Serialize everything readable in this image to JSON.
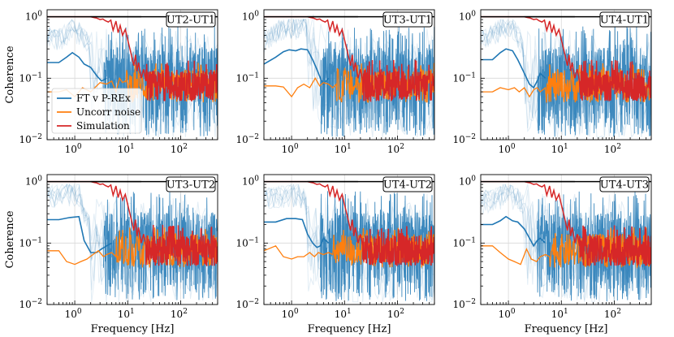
{
  "chart_data": {
    "type": "line",
    "scale": {
      "x": "log",
      "y": "log"
    },
    "xlim": [
      0.3,
      500
    ],
    "ylim": [
      0.01,
      1.3
    ],
    "xticks": [
      {
        "v": 1,
        "label": "10",
        "exp": "0"
      },
      {
        "v": 10,
        "label": "10",
        "exp": "1"
      },
      {
        "v": 100,
        "label": "10",
        "exp": "2"
      }
    ],
    "yticks": [
      {
        "v": 0.01,
        "label": "10",
        "exp": "−2"
      },
      {
        "v": 0.1,
        "label": "10",
        "exp": "−1"
      },
      {
        "v": 1,
        "label": "10",
        "exp": "0"
      }
    ],
    "xlabel": "Frequency [Hz]",
    "ylabel": "Coherence",
    "colors": {
      "ft": "#1f77b4",
      "uncorr": "#ff7f0e",
      "sim": "#d62728",
      "ref": "#000000"
    },
    "legend": {
      "placement": "lower-left of top-left panel",
      "entries": [
        {
          "label": "FT v P-REx",
          "series": "ft"
        },
        {
          "label": "Uncorr noise",
          "series": "uncorr"
        },
        {
          "label": "Simulation",
          "series": "sim"
        }
      ]
    },
    "sim_curve": {
      "x": [
        0.3,
        2,
        2.3,
        2.6,
        3,
        3.4,
        3.8,
        4.3,
        4.8,
        5.3,
        6,
        6.6,
        7.2,
        8,
        9,
        10,
        11,
        12,
        13,
        14,
        15,
        16,
        18,
        20,
        22
      ],
      "y": [
        1.0,
        1.0,
        0.97,
        0.95,
        0.9,
        0.92,
        0.86,
        0.82,
        0.88,
        0.6,
        0.85,
        0.55,
        0.72,
        0.5,
        0.62,
        0.42,
        0.3,
        0.22,
        0.16,
        0.24,
        0.13,
        0.18,
        0.1,
        0.14,
        0.09
      ]
    },
    "panels": [
      {
        "title": "UT2-UT1",
        "ft_mean": {
          "x": [
            0.3,
            0.5,
            0.7,
            0.9,
            1.2,
            1.5,
            2,
            2.6,
            3.2,
            4
          ],
          "y": [
            0.18,
            0.18,
            0.22,
            0.26,
            0.22,
            0.17,
            0.15,
            0.11,
            0.09,
            0.1
          ]
        },
        "uncorr_mean": {
          "x": [
            0.3,
            0.5,
            0.7,
            1,
            1.4,
            2,
            3,
            4,
            5,
            6,
            7,
            8,
            9
          ],
          "y": [
            0.06,
            0.06,
            0.065,
            0.05,
            0.07,
            0.06,
            0.085,
            0.08,
            0.09,
            0.06,
            0.1,
            0.085,
            0.09
          ]
        }
      },
      {
        "title": "UT3-UT1",
        "ft_mean": {
          "x": [
            0.3,
            0.5,
            0.7,
            0.9,
            1.2,
            1.5,
            2,
            2.5,
            3,
            3.5,
            4,
            5
          ],
          "y": [
            0.17,
            0.22,
            0.27,
            0.29,
            0.28,
            0.3,
            0.29,
            0.2,
            0.14,
            0.1,
            0.08,
            0.1
          ]
        },
        "uncorr_mean": {
          "x": [
            0.3,
            0.5,
            0.7,
            1,
            1.3,
            1.7,
            2.2,
            2.8,
            3.4,
            4,
            5,
            6,
            7
          ],
          "y": [
            0.075,
            0.075,
            0.072,
            0.05,
            0.07,
            0.08,
            0.07,
            0.1,
            0.075,
            0.085,
            0.08,
            0.07,
            0.08
          ]
        }
      },
      {
        "title": "UT4-UT1",
        "ft_mean": {
          "x": [
            0.3,
            0.5,
            0.7,
            0.9,
            1.2,
            1.5,
            2,
            2.5,
            3,
            3.5,
            4,
            5
          ],
          "y": [
            0.2,
            0.2,
            0.26,
            0.3,
            0.28,
            0.2,
            0.12,
            0.08,
            0.07,
            0.09,
            0.12,
            0.1
          ]
        },
        "uncorr_mean": {
          "x": [
            0.3,
            0.5,
            0.7,
            1,
            1.3,
            1.6,
            2,
            2.5,
            3,
            3.5,
            4,
            5
          ],
          "y": [
            0.06,
            0.06,
            0.07,
            0.065,
            0.07,
            0.06,
            0.07,
            0.05,
            0.065,
            0.07,
            0.06,
            0.07
          ]
        }
      },
      {
        "title": "UT3-UT2",
        "ft_mean": {
          "x": [
            0.3,
            0.5,
            0.8,
            1.2,
            1.5,
            2,
            2.6,
            3.2,
            4,
            5
          ],
          "y": [
            0.24,
            0.24,
            0.26,
            0.27,
            0.11,
            0.07,
            0.07,
            0.08,
            0.09,
            0.1
          ]
        },
        "uncorr_mean": {
          "x": [
            0.3,
            0.5,
            0.7,
            1,
            1.3,
            1.7,
            2.2,
            2.8,
            3.5,
            4,
            5,
            6
          ],
          "y": [
            0.075,
            0.075,
            0.05,
            0.045,
            0.05,
            0.055,
            0.065,
            0.075,
            0.06,
            0.065,
            0.07,
            0.06
          ]
        }
      },
      {
        "title": "UT4-UT2",
        "ft_mean": {
          "x": [
            0.3,
            0.5,
            0.8,
            1.2,
            1.6,
            2,
            2.5,
            3,
            3.5,
            4,
            5
          ],
          "y": [
            0.22,
            0.22,
            0.25,
            0.25,
            0.24,
            0.14,
            0.1,
            0.085,
            0.09,
            0.12,
            0.1
          ]
        },
        "uncorr_mean": {
          "x": [
            0.3,
            0.5,
            0.7,
            1,
            1.3,
            1.7,
            2.2,
            2.7,
            3.2,
            4,
            5,
            6
          ],
          "y": [
            0.075,
            0.09,
            0.06,
            0.055,
            0.06,
            0.06,
            0.07,
            0.06,
            0.07,
            0.065,
            0.07,
            0.065
          ]
        }
      },
      {
        "title": "UT4-UT3",
        "ft_mean": {
          "x": [
            0.3,
            0.5,
            0.7,
            0.9,
            1.2,
            1.5,
            2,
            2.5,
            3,
            3.5,
            4,
            5
          ],
          "y": [
            0.2,
            0.2,
            0.23,
            0.27,
            0.23,
            0.22,
            0.17,
            0.12,
            0.09,
            0.11,
            0.12,
            0.1
          ]
        },
        "uncorr_mean": {
          "x": [
            0.3,
            0.5,
            0.7,
            1,
            1.3,
            1.7,
            2.2,
            2.7,
            3.4,
            4,
            5,
            6
          ],
          "y": [
            0.09,
            0.09,
            0.07,
            0.055,
            0.05,
            0.045,
            0.08,
            0.055,
            0.05,
            0.06,
            0.065,
            0.06
          ]
        }
      }
    ]
  }
}
